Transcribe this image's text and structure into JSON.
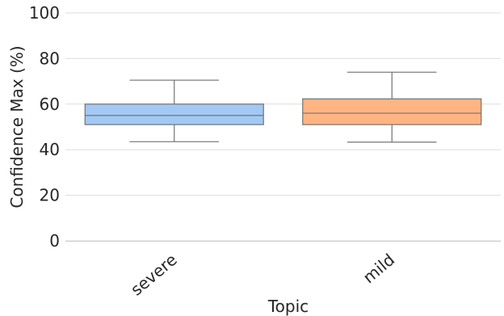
{
  "chart_data": {
    "type": "box",
    "xlabel": "Topic",
    "ylabel": "Confidence Max (%)",
    "ylim": [
      0,
      100
    ],
    "yticks": [
      "0",
      "20",
      "40",
      "60",
      "80",
      "100"
    ],
    "grid": "horizontal",
    "categories": [
      "severe",
      "mild"
    ],
    "boxes": [
      {
        "category": "severe",
        "whisker_low": 43.5,
        "q1": 51,
        "median": 55,
        "q3": 60,
        "whisker_high": 70.5,
        "color": "#a1c9f4"
      },
      {
        "category": "mild",
        "whisker_low": 43.3,
        "q1": 51,
        "median": 56,
        "q3": 62.3,
        "whisker_high": 74,
        "color": "#ffb482"
      }
    ]
  }
}
